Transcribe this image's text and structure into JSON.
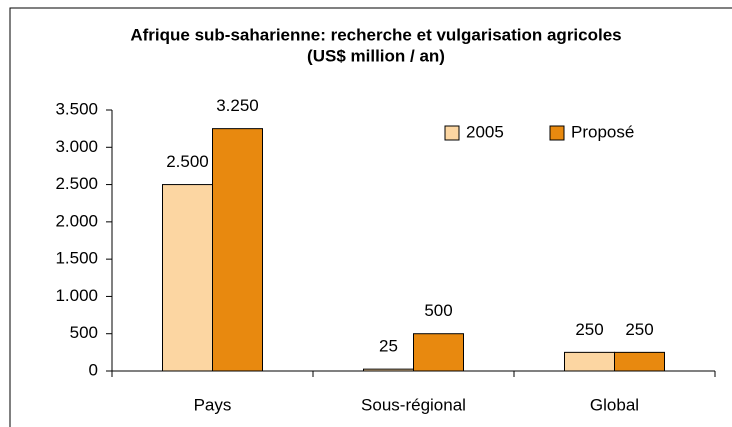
{
  "chart_data": {
    "type": "bar",
    "title": "Afrique sub-saharienne: recherche et vulgarisation agricoles",
    "subtitle": "(US$ million / an)",
    "categories": [
      "Pays",
      "Sous-régional",
      "Global"
    ],
    "series": [
      {
        "name": "2005",
        "color": "#fcd6a2",
        "values": [
          2500,
          25,
          250
        ],
        "value_labels": [
          "2.500",
          "25",
          "250"
        ]
      },
      {
        "name": "Proposé",
        "color": "#e8890f",
        "values": [
          3250,
          500,
          250
        ],
        "value_labels": [
          "3.250",
          "500",
          "250"
        ]
      }
    ],
    "ylim": [
      0,
      3500
    ],
    "yticks": [
      0,
      500,
      {
        "value": 1000,
        "label": "1.000"
      },
      {
        "value": 1500,
        "label": "1.500"
      },
      {
        "value": 2000,
        "label": "2.000"
      },
      {
        "value": 2500,
        "label": "2.500"
      },
      {
        "value": 3000,
        "label": "3.000"
      },
      {
        "value": 3500,
        "label": "3.500"
      }
    ],
    "grid": false,
    "legend": "upper right"
  }
}
